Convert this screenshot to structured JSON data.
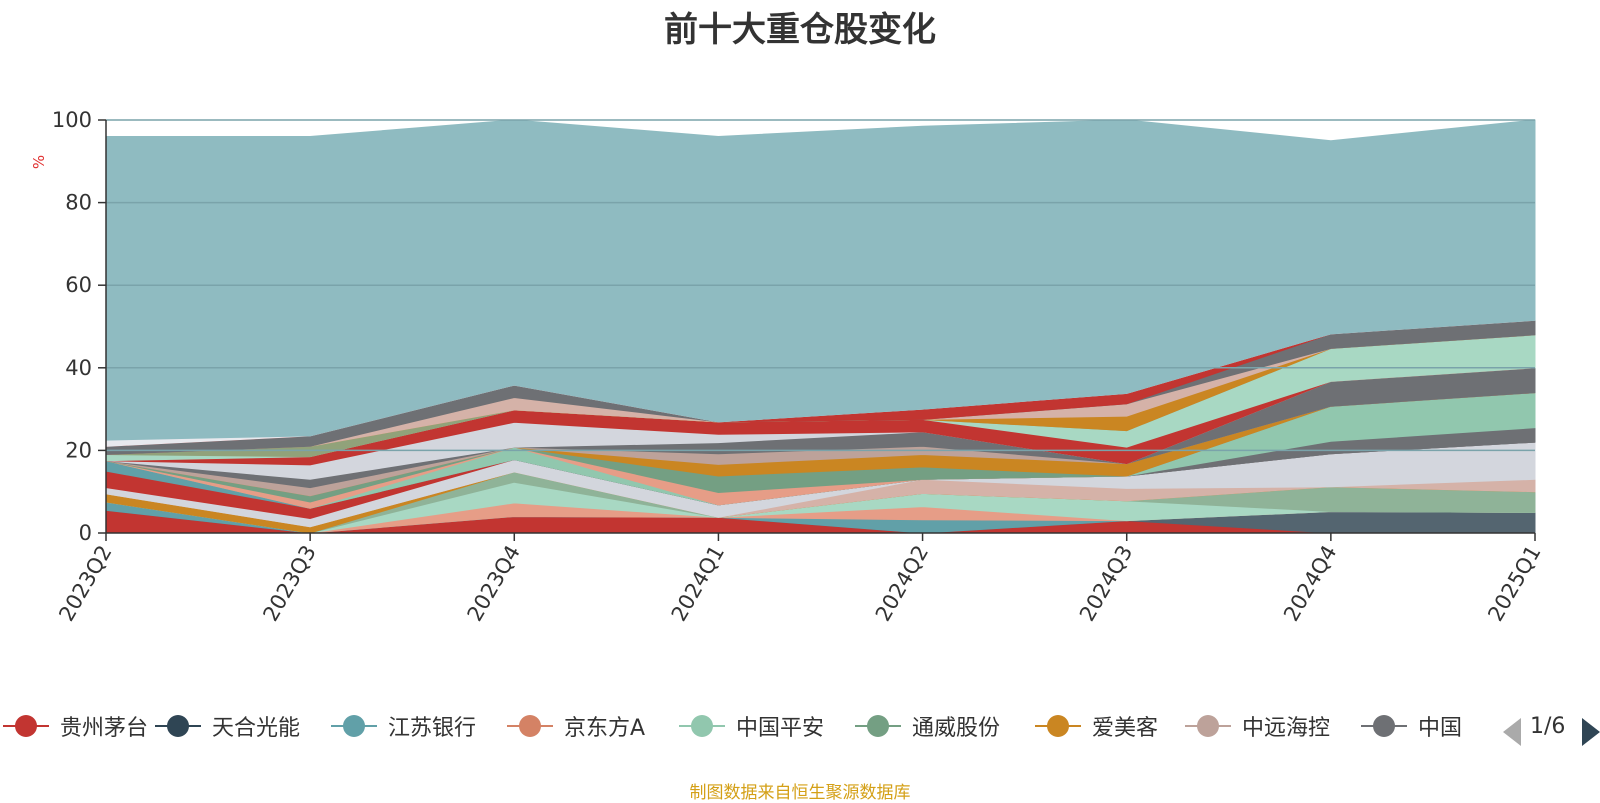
{
  "title": "前十大重仓股变化",
  "source_note": "制图数据来自恒生聚源数据库",
  "pager": {
    "text": "1/6"
  },
  "colors": {
    "background_area": "#8fbbc1",
    "axis": "#333333",
    "unit": "#e03030",
    "grid": "#7aa3aa"
  },
  "legend": [
    {
      "name": "贵州茅台",
      "color": "#c23531"
    },
    {
      "name": "天合光能",
      "color": "#2f4554"
    },
    {
      "name": "江苏银行",
      "color": "#61a0a8"
    },
    {
      "name": "京东方A",
      "color": "#d48265"
    },
    {
      "name": "中国平安",
      "color": "#91c7ae"
    },
    {
      "name": "通威股份",
      "color": "#749f83"
    },
    {
      "name": "爱美客",
      "color": "#ca8622"
    },
    {
      "name": "中远海控",
      "color": "#bda29a"
    },
    {
      "name": "中国",
      "color": "#6e7074"
    }
  ],
  "chart_data": {
    "type": "area",
    "stacked": true,
    "title": "前十大重仓股变化",
    "ylabel": "%",
    "ylim": [
      0,
      100
    ],
    "yticks": [
      0,
      20,
      40,
      60,
      80,
      100
    ],
    "categories": [
      "2023Q2",
      "2023Q3",
      "2023Q4",
      "2024Q1",
      "2024Q2",
      "2024Q3",
      "2024Q4",
      "2025Q1"
    ],
    "series": [
      {
        "color": "#c23531",
        "values": [
          5.5,
          0,
          4,
          3.8,
          0,
          3,
          0,
          0
        ]
      },
      {
        "color": "#546570",
        "values": [
          0,
          0,
          0,
          0,
          0,
          0,
          5.2,
          5
        ]
      },
      {
        "color": "#61a0a8",
        "values": [
          2,
          0,
          0,
          0,
          3.2,
          0,
          0,
          0
        ]
      },
      {
        "color": "#e69d87",
        "values": [
          0,
          0,
          3.3,
          0,
          3.2,
          0,
          0,
          0
        ]
      },
      {
        "color": "#a8d8c3",
        "values": [
          0,
          0,
          5,
          0,
          3.2,
          4.8,
          0,
          0
        ]
      },
      {
        "color": "#8fb398",
        "values": [
          0,
          0,
          2.5,
          0,
          0,
          0,
          6,
          5
        ]
      },
      {
        "color": "#ca8622",
        "values": [
          2,
          1.5,
          0,
          0,
          0,
          0,
          0,
          0
        ]
      },
      {
        "color": "#d5b2a8",
        "values": [
          0,
          0,
          0,
          0,
          3.4,
          3,
          0,
          3
        ]
      },
      {
        "color": "#d3d6dd",
        "values": [
          1.5,
          2,
          3,
          3,
          0,
          3,
          8,
          9
        ]
      },
      {
        "color": "#c23531",
        "values": [
          4,
          2.5,
          0,
          0,
          0,
          0,
          0,
          0
        ]
      },
      {
        "color": "#61a0a8",
        "values": [
          2.5,
          0,
          0,
          0,
          0,
          0,
          0,
          0
        ]
      },
      {
        "color": "#6e7074",
        "values": [
          0,
          0,
          0,
          0,
          0,
          0,
          3,
          3.5
        ]
      },
      {
        "color": "#91c7ae",
        "values": [
          0,
          0,
          3,
          0,
          0,
          0,
          8.5,
          8.5
        ]
      },
      {
        "color": "#e69d87",
        "values": [
          0,
          1.5,
          0,
          3,
          0,
          0,
          0,
          0
        ]
      },
      {
        "color": "#749f83",
        "values": [
          0,
          1.5,
          0,
          4,
          3,
          0,
          0,
          0
        ]
      },
      {
        "color": "#ca8622",
        "values": [
          0,
          0,
          0,
          2.8,
          3,
          3,
          0,
          0
        ]
      },
      {
        "color": "#bda29a",
        "values": [
          0,
          2,
          0,
          2.6,
          2,
          0,
          0,
          0
        ]
      },
      {
        "color": "#6e7074",
        "values": [
          0,
          2,
          0,
          2.7,
          3.5,
          0,
          6,
          6
        ]
      },
      {
        "color": "#d3d6dd",
        "values": [
          0,
          3.5,
          6,
          2,
          0,
          0,
          0,
          0
        ]
      },
      {
        "color": "#c23531",
        "values": [
          0,
          2,
          3,
          3,
          3,
          4,
          0,
          0
        ]
      },
      {
        "color": "#a8d8c3",
        "values": [
          1.5,
          0,
          0,
          0,
          0,
          4,
          8,
          8
        ]
      },
      {
        "color": "#91a27a",
        "values": [
          0,
          2.5,
          0,
          0,
          0,
          0,
          0,
          0
        ]
      },
      {
        "color": "#ca8622",
        "values": [
          0,
          0,
          0,
          0,
          0,
          3.5,
          0,
          0
        ]
      },
      {
        "color": "#d5b2a8",
        "values": [
          0,
          0,
          3,
          0,
          0,
          3,
          0,
          0
        ]
      },
      {
        "color": "#6e7074",
        "values": [
          2,
          2.5,
          3,
          0,
          0,
          0,
          3.5,
          3.5
        ]
      },
      {
        "color": "#c23531",
        "values": [
          0,
          0,
          0,
          0,
          2.5,
          2.5,
          0,
          0
        ]
      },
      {
        "color": "#e8e9ee",
        "values": [
          1.5,
          0,
          0,
          0,
          0,
          0,
          0,
          0
        ]
      },
      {
        "color": "#8fbbc1",
        "values": [
          73.5,
          72.5,
          66.7,
          69.1,
          68.5,
          68.2,
          46.8,
          48.5
        ]
      }
    ]
  }
}
